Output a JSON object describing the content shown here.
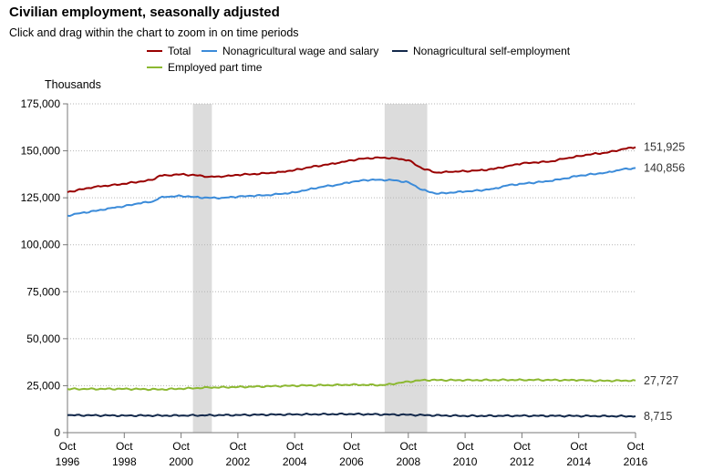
{
  "header": {
    "title": "Civilian employment, seasonally adjusted",
    "subtitle": "Click and drag within the chart to zoom in on time periods"
  },
  "chart_data": {
    "type": "line",
    "title": "Civilian employment, seasonally adjusted",
    "ylabel": "Thousands",
    "xlabel": "",
    "ylim": [
      0,
      175000
    ],
    "xlim": [
      "1996-10",
      "2016-10"
    ],
    "grid": "horizontal dotted",
    "legend_position": "top",
    "y_ticks": [
      "175,000",
      "150,000",
      "125,000",
      "100,000",
      "75,000",
      "50,000",
      "25,000",
      "0"
    ],
    "y_tick_values": [
      175000,
      150000,
      125000,
      100000,
      75000,
      50000,
      25000,
      0
    ],
    "x_ticks": [
      {
        "month": "Oct",
        "year": "1996",
        "date": "1996-10"
      },
      {
        "month": "Oct",
        "year": "1998",
        "date": "1998-10"
      },
      {
        "month": "Oct",
        "year": "2000",
        "date": "2000-10"
      },
      {
        "month": "Oct",
        "year": "2002",
        "date": "2002-10"
      },
      {
        "month": "Oct",
        "year": "2004",
        "date": "2004-10"
      },
      {
        "month": "Oct",
        "year": "2006",
        "date": "2006-10"
      },
      {
        "month": "Oct",
        "year": "2008",
        "date": "2008-10"
      },
      {
        "month": "Oct",
        "year": "2010",
        "date": "2010-10"
      },
      {
        "month": "Oct",
        "year": "2012",
        "date": "2012-10"
      },
      {
        "month": "Oct",
        "year": "2014",
        "date": "2014-10"
      },
      {
        "month": "Oct",
        "year": "2016",
        "date": "2016-10"
      }
    ],
    "recessions": [
      {
        "start": "2001-03",
        "end": "2001-11"
      },
      {
        "start": "2007-12",
        "end": "2009-06"
      }
    ],
    "series": [
      {
        "name": "Total",
        "color": "#990000",
        "end_label": "151,925",
        "x": [
          "1996-10",
          "1997-04",
          "1997-10",
          "1998-04",
          "1998-10",
          "1999-04",
          "1999-10",
          "2000-01",
          "2000-04",
          "2000-10",
          "2001-04",
          "2001-10",
          "2002-04",
          "2002-10",
          "2003-04",
          "2003-10",
          "2004-04",
          "2004-10",
          "2005-04",
          "2005-10",
          "2006-04",
          "2006-10",
          "2007-04",
          "2007-10",
          "2008-04",
          "2008-10",
          "2009-04",
          "2009-10",
          "2010-04",
          "2010-10",
          "2011-04",
          "2011-10",
          "2012-04",
          "2012-10",
          "2013-04",
          "2013-10",
          "2014-04",
          "2014-10",
          "2015-04",
          "2015-10",
          "2016-04",
          "2016-10"
        ],
        "y": [
          128000,
          129500,
          131000,
          131500,
          132500,
          133500,
          134500,
          136800,
          137000,
          137500,
          137000,
          136200,
          136300,
          137200,
          137600,
          138000,
          138800,
          139700,
          141200,
          142400,
          143400,
          145000,
          146000,
          146300,
          146100,
          145000,
          140500,
          138400,
          138800,
          139200,
          139600,
          140300,
          141900,
          143300,
          143800,
          144300,
          145800,
          147200,
          148400,
          149000,
          150800,
          151925
        ]
      },
      {
        "name": "Nonagricultural wage and salary",
        "color": "#3b8bd9",
        "end_label": "140,856",
        "x": [
          "1996-10",
          "1997-04",
          "1997-10",
          "1998-04",
          "1998-10",
          "1999-04",
          "1999-10",
          "2000-01",
          "2000-04",
          "2000-10",
          "2001-04",
          "2001-10",
          "2002-04",
          "2002-10",
          "2003-04",
          "2003-10",
          "2004-04",
          "2004-10",
          "2005-04",
          "2005-10",
          "2006-04",
          "2006-10",
          "2007-04",
          "2007-10",
          "2008-04",
          "2008-10",
          "2009-04",
          "2009-10",
          "2010-04",
          "2010-10",
          "2011-04",
          "2011-10",
          "2012-04",
          "2012-10",
          "2013-04",
          "2013-10",
          "2014-04",
          "2014-10",
          "2015-04",
          "2015-10",
          "2016-04",
          "2016-10"
        ],
        "y": [
          115500,
          117000,
          118000,
          119500,
          120500,
          122000,
          123000,
          125000,
          125500,
          126000,
          125400,
          124900,
          125000,
          125600,
          126000,
          126400,
          127000,
          127900,
          129500,
          130900,
          131900,
          133400,
          134400,
          134600,
          134300,
          133300,
          129200,
          127100,
          127800,
          128300,
          128900,
          129800,
          131600,
          132500,
          133200,
          133900,
          135300,
          136700,
          137600,
          138500,
          140000,
          140856
        ]
      },
      {
        "name": "Nonagricultural self-employment",
        "color": "#13294b",
        "end_label": "8,715",
        "x": [
          "1996-10",
          "1998-10",
          "2000-10",
          "2002-10",
          "2004-10",
          "2006-10",
          "2008-10",
          "2010-10",
          "2012-10",
          "2014-10",
          "2016-10"
        ],
        "y": [
          9300,
          9100,
          9100,
          9400,
          9700,
          9900,
          9500,
          8900,
          9000,
          8900,
          8715
        ]
      },
      {
        "name": "Employed part time",
        "color": "#8cb831",
        "end_label": "27,727",
        "x": [
          "1996-10",
          "1998-10",
          "2000-01",
          "2000-10",
          "2001-10",
          "2002-10",
          "2004-10",
          "2006-10",
          "2007-12",
          "2008-06",
          "2009-04",
          "2010-10",
          "2012-10",
          "2014-10",
          "2015-06",
          "2016-10"
        ],
        "y": [
          23200,
          23300,
          23000,
          23400,
          24000,
          24300,
          25000,
          25500,
          25300,
          26500,
          28000,
          27900,
          28100,
          27900,
          27600,
          27727
        ]
      }
    ]
  }
}
